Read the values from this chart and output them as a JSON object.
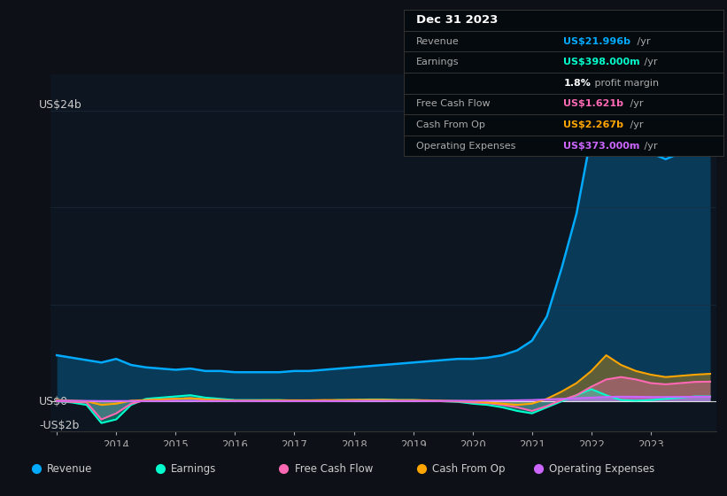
{
  "bg_color": "#0d1117",
  "plot_bg_color": "#0d1520",
  "grid_color": "#1e2d40",
  "title_text": "Dec 31 2023",
  "info_rows": [
    {
      "label": "Revenue",
      "value": "US$21.996b",
      "suffix": " /yr",
      "value_color": "#00aaff",
      "label_color": "#aaaaaa"
    },
    {
      "label": "Earnings",
      "value": "US$398.000m",
      "suffix": " /yr",
      "value_color": "#00ffcc",
      "label_color": "#aaaaaa"
    },
    {
      "label": "",
      "value": "1.8%",
      "suffix": " profit margin",
      "value_color": "#ffffff",
      "label_color": "#aaaaaa"
    },
    {
      "label": "Free Cash Flow",
      "value": "US$1.621b",
      "suffix": " /yr",
      "value_color": "#ff69b4",
      "label_color": "#aaaaaa"
    },
    {
      "label": "Cash From Op",
      "value": "US$2.267b",
      "suffix": " /yr",
      "value_color": "#ffa500",
      "label_color": "#aaaaaa"
    },
    {
      "label": "Operating Expenses",
      "value": "US$373.000m",
      "suffix": " /yr",
      "value_color": "#cc66ff",
      "label_color": "#aaaaaa"
    }
  ],
  "ylabel_top": "US$24b",
  "ylabel_zero": "US$0",
  "ylabel_neg": "-US$2b",
  "ylim": [
    -2.5,
    27
  ],
  "years": [
    2013.0,
    2013.25,
    2013.5,
    2013.75,
    2014.0,
    2014.25,
    2014.5,
    2014.75,
    2015.0,
    2015.25,
    2015.5,
    2015.75,
    2016.0,
    2016.25,
    2016.5,
    2016.75,
    2017.0,
    2017.25,
    2017.5,
    2017.75,
    2018.0,
    2018.25,
    2018.5,
    2018.75,
    2019.0,
    2019.25,
    2019.5,
    2019.75,
    2020.0,
    2020.25,
    2020.5,
    2020.75,
    2021.0,
    2021.25,
    2021.5,
    2021.75,
    2022.0,
    2022.25,
    2022.5,
    2022.75,
    2023.0,
    2023.25,
    2023.5,
    2023.75,
    2024.0
  ],
  "revenue": [
    3.8,
    3.6,
    3.4,
    3.2,
    3.5,
    3.0,
    2.8,
    2.7,
    2.6,
    2.7,
    2.5,
    2.5,
    2.4,
    2.4,
    2.4,
    2.4,
    2.5,
    2.5,
    2.6,
    2.7,
    2.8,
    2.9,
    3.0,
    3.1,
    3.2,
    3.3,
    3.4,
    3.5,
    3.5,
    3.6,
    3.8,
    4.2,
    5.0,
    7.0,
    11.0,
    15.5,
    22.0,
    24.5,
    23.0,
    21.5,
    20.5,
    20.0,
    20.5,
    21.5,
    21.996
  ],
  "earnings": [
    0.0,
    -0.1,
    -0.3,
    -1.8,
    -1.5,
    -0.3,
    0.2,
    0.3,
    0.4,
    0.5,
    0.3,
    0.2,
    0.1,
    0.1,
    0.1,
    0.1,
    0.05,
    0.05,
    0.05,
    0.1,
    0.1,
    0.15,
    0.15,
    0.1,
    0.1,
    0.05,
    0.0,
    -0.05,
    -0.2,
    -0.3,
    -0.5,
    -0.8,
    -1.0,
    -0.5,
    0.0,
    0.5,
    1.0,
    0.5,
    0.1,
    0.05,
    0.1,
    0.2,
    0.3,
    0.4,
    0.398
  ],
  "free_cash_flow": [
    0.0,
    -0.05,
    -0.1,
    -1.5,
    -1.0,
    -0.2,
    0.1,
    0.15,
    0.2,
    0.25,
    0.15,
    0.1,
    0.05,
    0.05,
    0.05,
    0.05,
    0.02,
    0.02,
    0.02,
    0.05,
    0.05,
    0.08,
    0.08,
    0.05,
    0.05,
    0.02,
    0.0,
    -0.02,
    -0.1,
    -0.15,
    -0.3,
    -0.5,
    -0.8,
    -0.4,
    0.1,
    0.5,
    1.2,
    1.8,
    2.0,
    1.8,
    1.5,
    1.4,
    1.5,
    1.6,
    1.621
  ],
  "cash_from_op": [
    0.1,
    0.05,
    0.0,
    -0.3,
    -0.2,
    0.05,
    0.1,
    0.15,
    0.2,
    0.25,
    0.15,
    0.1,
    0.05,
    0.05,
    0.08,
    0.08,
    0.08,
    0.08,
    0.1,
    0.1,
    0.12,
    0.12,
    0.12,
    0.1,
    0.1,
    0.08,
    0.05,
    0.02,
    0.0,
    -0.1,
    -0.2,
    -0.3,
    -0.2,
    0.2,
    0.8,
    1.5,
    2.5,
    3.8,
    3.0,
    2.5,
    2.2,
    2.0,
    2.1,
    2.2,
    2.267
  ],
  "operating_expenses": [
    0.05,
    0.04,
    0.03,
    0.02,
    0.02,
    0.02,
    0.02,
    0.02,
    0.03,
    0.03,
    0.02,
    0.02,
    0.02,
    0.02,
    0.02,
    0.02,
    0.02,
    0.02,
    0.02,
    0.02,
    0.03,
    0.03,
    0.03,
    0.03,
    0.03,
    0.03,
    0.03,
    0.04,
    0.04,
    0.05,
    0.06,
    0.08,
    0.1,
    0.15,
    0.2,
    0.25,
    0.3,
    0.35,
    0.38,
    0.37,
    0.35,
    0.35,
    0.36,
    0.37,
    0.373
  ],
  "revenue_color": "#00aaff",
  "earnings_color": "#00ffcc",
  "free_cash_flow_color": "#ff69b4",
  "cash_from_op_color": "#ffa500",
  "operating_expenses_color": "#cc66ff",
  "legend_items": [
    {
      "label": "Revenue",
      "color": "#00aaff"
    },
    {
      "label": "Earnings",
      "color": "#00ffcc"
    },
    {
      "label": "Free Cash Flow",
      "color": "#ff69b4"
    },
    {
      "label": "Cash From Op",
      "color": "#ffa500"
    },
    {
      "label": "Operating Expenses",
      "color": "#cc66ff"
    }
  ],
  "xticks": [
    2013,
    2014,
    2015,
    2016,
    2017,
    2018,
    2019,
    2020,
    2021,
    2022,
    2023
  ],
  "xtick_labels": [
    "",
    "2014",
    "2015",
    "2016",
    "2017",
    "2018",
    "2019",
    "2020",
    "2021",
    "2022",
    "2023"
  ],
  "grid_hlines": [
    0,
    8,
    16,
    24
  ],
  "grid_hline_colors": [
    "#ffffff",
    "#1e2d40",
    "#1e2d40",
    "#1e2d40"
  ],
  "grid_hline_alphas": [
    0.8,
    0.7,
    0.7,
    0.7
  ]
}
